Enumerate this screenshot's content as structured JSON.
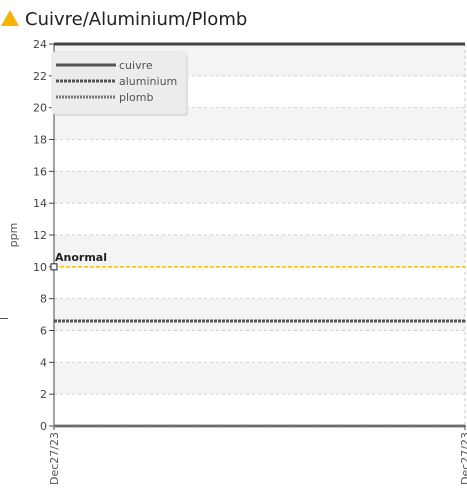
{
  "title": "Cuivre/Aluminium/Plomb",
  "icons": {
    "title_icon": "warning-triangle-icon"
  },
  "colors": {
    "warning": "#f5b400",
    "threshold_line": "#f2c200",
    "cuivre": "#555555",
    "aluminium": "#555555",
    "plomb": "#777777",
    "band": "#f4f4f4"
  },
  "chart_data": {
    "type": "line",
    "ylabel": "ppm",
    "xlabel": "",
    "ylim": [
      0,
      24
    ],
    "yticks": [
      0,
      2,
      4,
      6,
      8,
      10,
      12,
      14,
      16,
      18,
      20,
      22,
      24
    ],
    "x": [
      "Dec27/23",
      "Dec27/23"
    ],
    "series": [
      {
        "name": "cuivre",
        "values": [
          0,
          0
        ],
        "style": "solid"
      },
      {
        "name": "aluminium",
        "values": [
          6.6,
          6.6
        ],
        "style": "dashed"
      },
      {
        "name": "plomb",
        "values": [
          0,
          0
        ],
        "style": "dotted"
      }
    ],
    "threshold": {
      "label": "Anormal",
      "value": 10
    },
    "grid": true,
    "legend_position": "top-left"
  }
}
